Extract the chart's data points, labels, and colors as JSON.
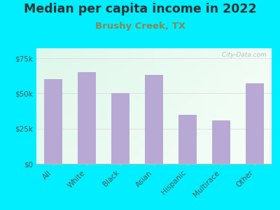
{
  "title": "Median per capita income in 2022",
  "subtitle": "Brushy Creek, TX",
  "categories": [
    "All",
    "White",
    "Black",
    "Asian",
    "Hispanic",
    "Multirace",
    "Other"
  ],
  "values": [
    60000,
    65000,
    50000,
    63000,
    35000,
    31000,
    57000
  ],
  "bar_color": "#b8a9d4",
  "background_color": "#00eeff",
  "plot_bg_left": "#d6f5e8",
  "plot_bg_right": "#f8fff8",
  "title_color": "#333333",
  "subtitle_color": "#888855",
  "tick_color": "#555555",
  "grid_color": "#dddddd",
  "ylim": [
    0,
    82000
  ],
  "yticks": [
    0,
    25000,
    50000,
    75000
  ],
  "ytick_labels": [
    "$0",
    "$25k",
    "$50k",
    "$75k"
  ],
  "watermark": " City-Data.com",
  "title_fontsize": 12.5,
  "subtitle_fontsize": 9.5,
  "tick_fontsize": 7.5
}
